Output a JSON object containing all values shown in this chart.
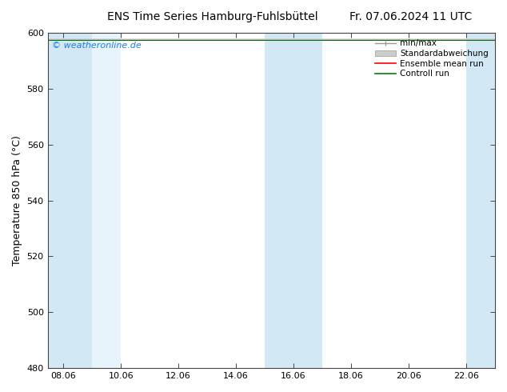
{
  "title_left": "ENS Time Series Hamburg-Fuhlsbüttel",
  "title_right": "Fr. 07.06.2024 11 UTC",
  "ylabel": "Temperature 850 hPa (°C)",
  "xlim_days": [
    7.458,
    23.0
  ],
  "ylim": [
    480,
    600
  ],
  "yticks": [
    480,
    500,
    520,
    540,
    560,
    580,
    600
  ],
  "xtick_labels": [
    "08.06",
    "10.06",
    "12.06",
    "14.06",
    "16.06",
    "18.06",
    "20.06",
    "22.06"
  ],
  "xtick_days": [
    8,
    10,
    12,
    14,
    16,
    18,
    20,
    22
  ],
  "background_color": "#ffffff",
  "plot_bg_color": "#ffffff",
  "watermark_text": "© weatheronline.de",
  "watermark_color": "#1e7be0",
  "legend_items": [
    "min/max",
    "Standardabweichung",
    "Ensemble mean run",
    "Controll run"
  ],
  "legend_line_colors": [
    "#999999",
    "#bbbbbb",
    "#ff0000",
    "#008000"
  ],
  "shaded_bands": [
    {
      "x_start": 7.458,
      "x_end": 9.0,
      "color": "#d3e8f5"
    },
    {
      "x_start": 9.0,
      "x_end": 10.0,
      "color": "#e8f4fb"
    },
    {
      "x_start": 10.0,
      "x_end": 15.0,
      "color": "#ffffff"
    },
    {
      "x_start": 15.0,
      "x_end": 17.0,
      "color": "#d3e8f5"
    },
    {
      "x_start": 17.0,
      "x_end": 22.0,
      "color": "#ffffff"
    },
    {
      "x_start": 22.0,
      "x_end": 23.0,
      "color": "#d3e8f5"
    }
  ],
  "data_y": 597.5,
  "title_fontsize": 10,
  "tick_fontsize": 8,
  "ylabel_fontsize": 9
}
